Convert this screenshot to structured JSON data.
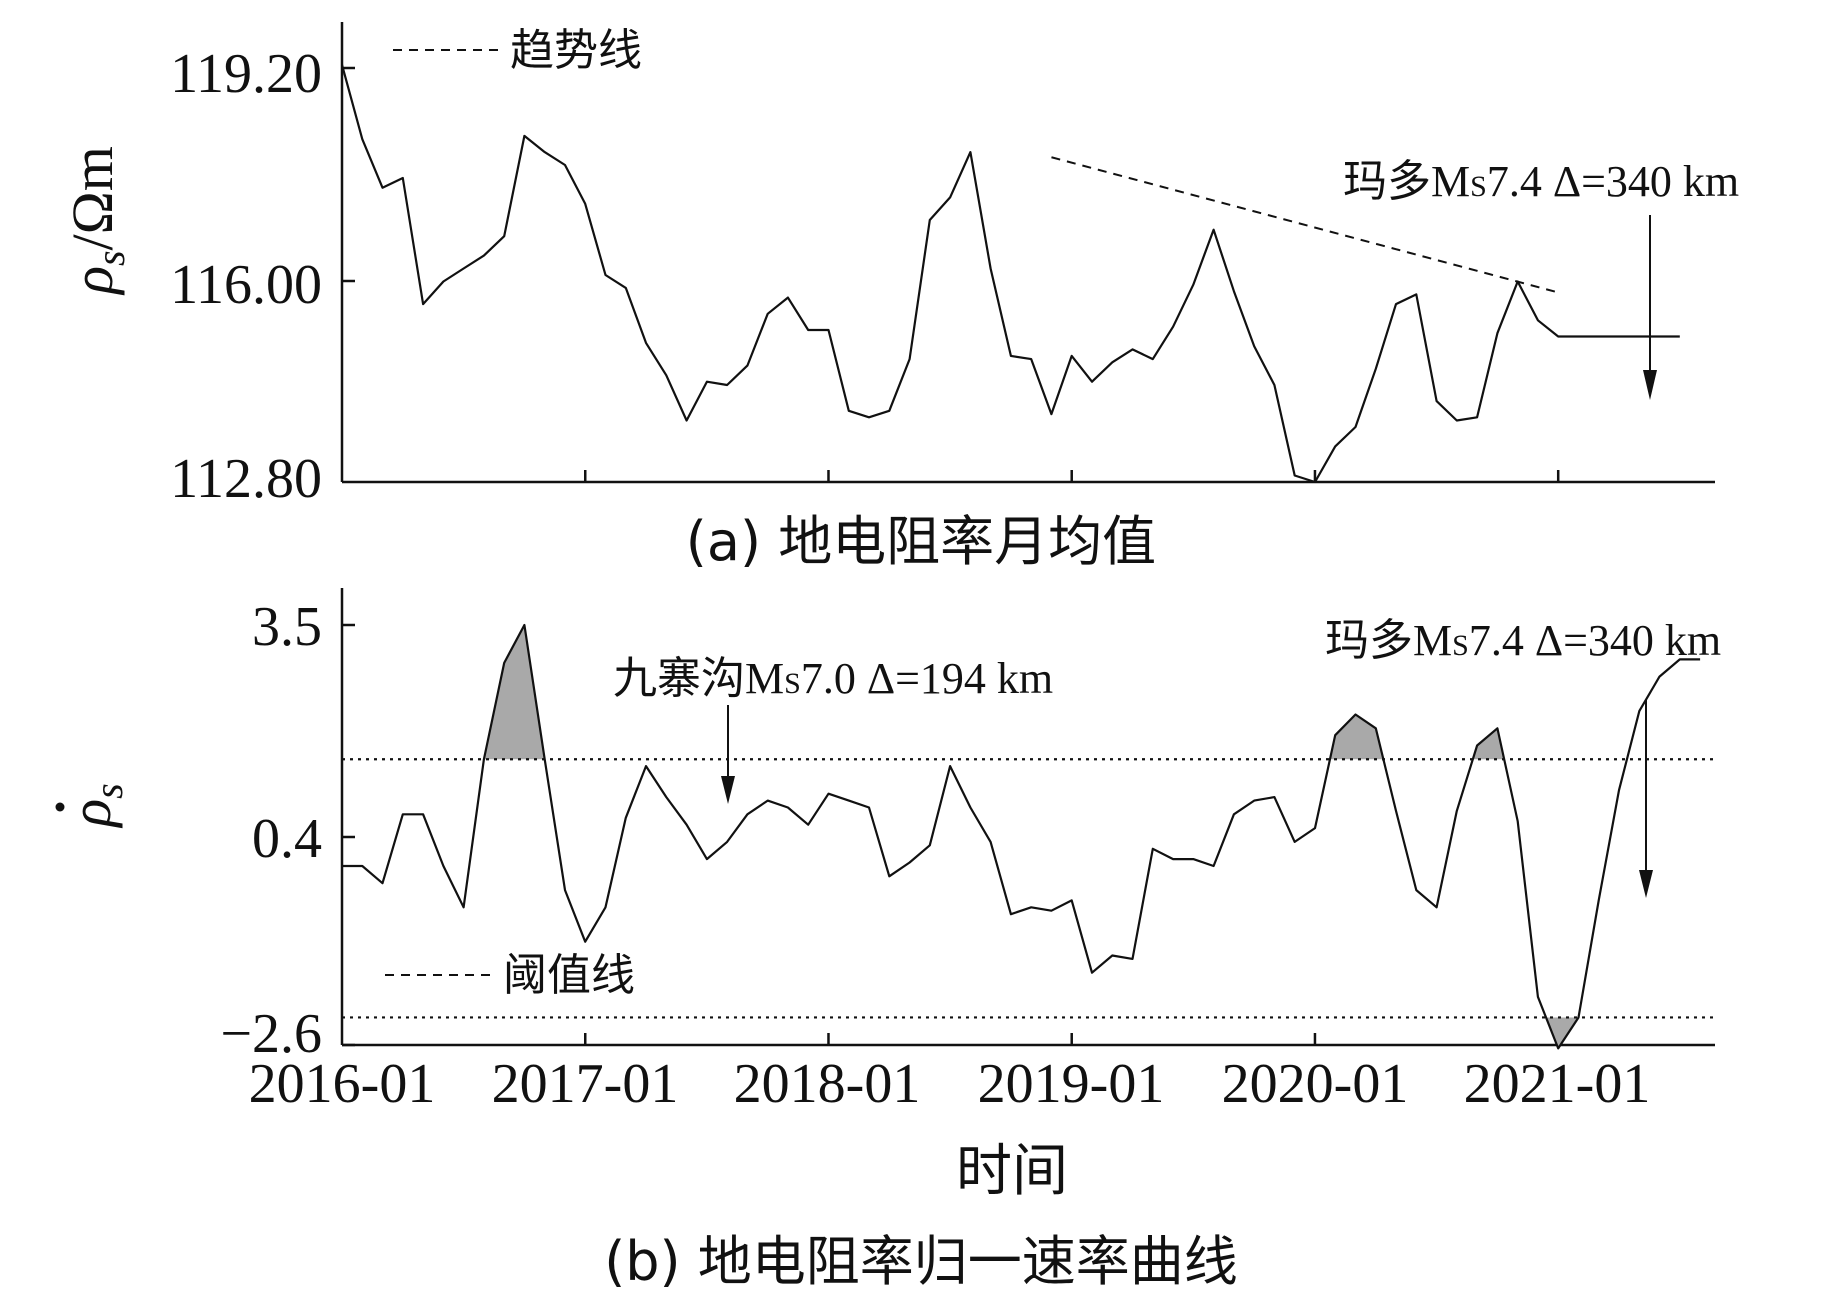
{
  "chart_data": [
    {
      "panel": "a",
      "type": "line",
      "caption": "(a) 地电阻率月均值",
      "ylabel": "ρs/Ωm",
      "y_ticks": [
        "119.20",
        "116.00",
        "112.80"
      ],
      "ylim": [
        112.8,
        119.8
      ],
      "xlim": [
        "2016-01",
        "2021-08"
      ],
      "x_tick_dates": [
        "2016-01",
        "2017-01",
        "2018-01",
        "2019-01",
        "2020-01",
        "2021-01"
      ],
      "legend": {
        "label": "趋势线",
        "position": "top-left"
      },
      "series": [
        {
          "x": [
            "2016-01",
            "2016-02",
            "2016-03",
            "2016-04",
            "2016-05",
            "2016-06",
            "2016-07",
            "2016-08",
            "2016-09",
            "2016-10",
            "2016-11",
            "2016-12",
            "2017-01",
            "2017-02",
            "2017-03",
            "2017-04",
            "2017-05",
            "2017-06",
            "2017-07",
            "2017-08",
            "2017-09",
            "2017-10",
            "2017-11",
            "2017-12",
            "2018-01",
            "2018-02",
            "2018-03",
            "2018-04",
            "2018-05",
            "2018-06",
            "2018-07",
            "2018-08",
            "2018-09",
            "2018-10",
            "2018-11",
            "2018-12",
            "2019-01",
            "2019-02",
            "2019-03",
            "2019-04",
            "2019-05",
            "2019-06",
            "2019-07",
            "2019-08",
            "2019-09",
            "2019-10",
            "2019-11",
            "2019-12",
            "2020-01",
            "2020-02",
            "2020-03",
            "2020-04",
            "2020-05",
            "2020-06",
            "2020-07",
            "2020-08",
            "2020-09",
            "2020-10",
            "2020-11",
            "2020-12",
            "2021-01",
            "2021-02",
            "2021-03",
            "2021-04",
            "2021-05",
            "2021-06",
            "2021-07",
            "2021-08"
          ],
          "values": [
            119.25,
            118.1,
            117.35,
            117.5,
            115.55,
            115.9,
            116.1,
            116.3,
            116.6,
            118.15,
            117.9,
            117.7,
            117.1,
            116.0,
            115.8,
            114.95,
            114.45,
            113.75,
            114.35,
            114.3,
            114.6,
            115.4,
            115.65,
            115.15,
            115.15,
            113.9,
            113.8,
            113.9,
            114.7,
            116.85,
            117.2,
            117.9,
            116.1,
            114.75,
            114.7,
            113.85,
            114.75,
            114.35,
            114.65,
            114.85,
            114.7,
            115.2,
            115.85,
            116.7,
            115.75,
            114.9,
            114.3,
            112.9,
            112.75,
            113.35,
            113.65,
            114.55,
            115.55,
            115.7,
            114.05,
            113.75,
            113.8,
            115.1,
            115.9,
            115.3,
            115.05,
            115.05,
            115.05,
            115.05,
            115.05,
            115.05,
            115.05,
            115.05
          ]
        }
      ],
      "trend_line": {
        "x": [
          "2018-12",
          "2021-01"
        ],
        "y": [
          117.82,
          115.73
        ]
      },
      "annotations": [
        {
          "text_prefix": "玛多",
          "text_m": "M",
          "text_sub": "S",
          "text_rest": "7.4 Δ=340 km",
          "date": "2021-05"
        }
      ]
    },
    {
      "panel": "b",
      "type": "line",
      "caption": "(b) 地电阻率归一速率曲线",
      "ylabel": "ρ̇s",
      "y_ticks": [
        "3.5",
        "0.4",
        "−2.6"
      ],
      "ylim": [
        -2.6,
        4.0
      ],
      "xlim": [
        "2016-01",
        "2021-08"
      ],
      "x_tick_labels": [
        "2016-01",
        "2017-01",
        "2018-01",
        "2019-01",
        "2020-01",
        "2021-01"
      ],
      "xlabel": "时间",
      "threshold_upper": 1.55,
      "threshold_lower": -2.2,
      "legend": {
        "label": "阈值线",
        "position": "bottom-left"
      },
      "series": [
        {
          "x": [
            "2016-01",
            "2016-02",
            "2016-03",
            "2016-04",
            "2016-05",
            "2016-06",
            "2016-07",
            "2016-08",
            "2016-09",
            "2016-10",
            "2016-11",
            "2016-12",
            "2017-01",
            "2017-02",
            "2017-03",
            "2017-04",
            "2017-05",
            "2017-06",
            "2017-07",
            "2017-08",
            "2017-09",
            "2017-10",
            "2017-11",
            "2017-12",
            "2018-01",
            "2018-02",
            "2018-03",
            "2018-04",
            "2018-05",
            "2018-06",
            "2018-07",
            "2018-08",
            "2018-09",
            "2018-10",
            "2018-11",
            "2018-12",
            "2019-01",
            "2019-02",
            "2019-03",
            "2019-04",
            "2019-05",
            "2019-06",
            "2019-07",
            "2019-08",
            "2019-09",
            "2019-10",
            "2019-11",
            "2019-12",
            "2020-01",
            "2020-02",
            "2020-03",
            "2020-04",
            "2020-05",
            "2020-06",
            "2020-07",
            "2020-08",
            "2020-09",
            "2020-10",
            "2020-11",
            "2020-12",
            "2021-01",
            "2021-02",
            "2021-03",
            "2021-04",
            "2021-05",
            "2021-06",
            "2021-07",
            "2021-08"
          ],
          "values": [
            0.0,
            0.0,
            -0.25,
            0.75,
            0.75,
            0.0,
            -0.6,
            1.55,
            2.95,
            3.5,
            1.55,
            -0.35,
            -1.1,
            -0.6,
            0.7,
            1.45,
            1.0,
            0.6,
            0.1,
            0.35,
            0.75,
            0.95,
            0.85,
            0.6,
            1.05,
            0.95,
            0.85,
            -0.15,
            0.05,
            0.3,
            1.45,
            0.85,
            0.35,
            -0.7,
            -0.6,
            -0.65,
            -0.5,
            -1.55,
            -1.3,
            -1.35,
            0.25,
            0.1,
            0.1,
            0.0,
            0.75,
            0.95,
            1.0,
            0.35,
            0.55,
            1.9,
            2.2,
            2.0,
            0.8,
            -0.35,
            -0.6,
            0.8,
            1.75,
            2.0,
            0.65,
            -1.9,
            -2.65,
            -2.2,
            -0.5,
            1.1,
            2.25,
            2.75,
            3.0,
            3.0
          ]
        }
      ],
      "annotations": [
        {
          "text_prefix": "九寨沟",
          "text_m": "M",
          "text_sub": "S",
          "text_rest": "7.0 Δ=194 km",
          "date": "2017-08"
        },
        {
          "text_prefix": "玛多",
          "text_m": "M",
          "text_sub": "S",
          "text_rest": "7.4 Δ=340 km",
          "date": "2021-05"
        }
      ]
    }
  ]
}
